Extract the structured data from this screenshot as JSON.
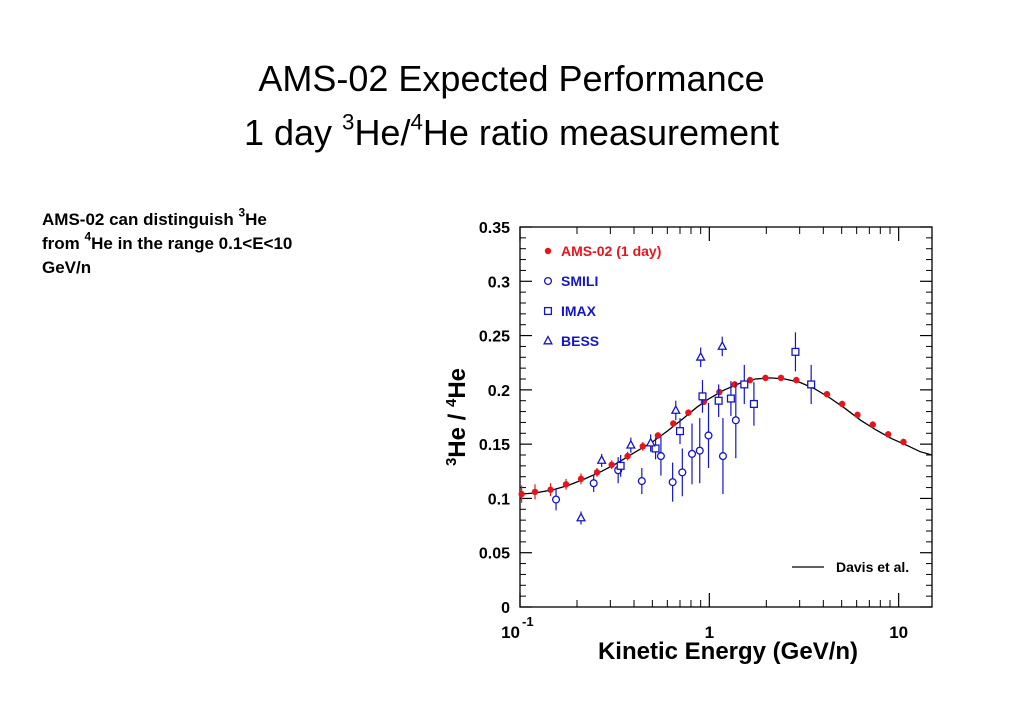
{
  "title": {
    "line1": "AMS-02 Expected Performance",
    "line2_pre": "1 day ",
    "line2_sup1": "3",
    "line2_mid": "He/",
    "line2_sup2": "4",
    "line2_post": "He ratio measurement"
  },
  "note": {
    "pre": "AMS-02 can distinguish ",
    "sup1": "3",
    "mid1": "He",
    "mid2": "from ",
    "sup2": "4",
    "mid3": "He in the range 0.1<E<10",
    "post": "GeV/n"
  },
  "colors": {
    "ams": "#e8141b",
    "measurements": "#1515c8",
    "model": "#000000",
    "legend_text": "#1515c8"
  },
  "chart_data": {
    "type": "scatter",
    "xlabel": "Kinetic Energy (GeV/n)",
    "ylabel": {
      "sup1": "3",
      "mid": "He / ",
      "sup2": "4",
      "post": "He"
    },
    "xscale": "log",
    "xlim": [
      0.1,
      15
    ],
    "ylim": [
      0,
      0.35
    ],
    "yticks": [
      "0",
      "0.05",
      "0.1",
      "0.15",
      "0.2",
      "0.25",
      "0.3",
      "0.35"
    ],
    "xtick_labels": [
      {
        "value": 0.1,
        "base": "10",
        "exp": "-1"
      },
      {
        "value": 1,
        "base": "1",
        "exp": ""
      },
      {
        "value": 10,
        "base": "10",
        "exp": ""
      }
    ],
    "legend_position": "top-left",
    "model_legend_position": "bottom-right",
    "series": [
      {
        "name": "AMS-02 (1 day)",
        "marker": "dot",
        "color": "#e8141b",
        "points": [
          [
            0.102,
            0.104
          ],
          [
            0.12,
            0.106
          ],
          [
            0.145,
            0.108
          ],
          [
            0.175,
            0.113
          ],
          [
            0.21,
            0.118
          ],
          [
            0.255,
            0.124
          ],
          [
            0.305,
            0.131
          ],
          [
            0.37,
            0.139
          ],
          [
            0.445,
            0.148
          ],
          [
            0.535,
            0.158
          ],
          [
            0.645,
            0.169
          ],
          [
            0.775,
            0.179
          ],
          [
            0.935,
            0.189
          ],
          [
            1.13,
            0.198
          ],
          [
            1.36,
            0.205
          ],
          [
            1.64,
            0.209
          ],
          [
            1.98,
            0.211
          ],
          [
            2.39,
            0.211
          ],
          [
            2.88,
            0.209
          ],
          [
            3.47,
            0.204
          ],
          [
            4.18,
            0.196
          ],
          [
            5.03,
            0.187
          ],
          [
            6.06,
            0.177
          ],
          [
            7.3,
            0.168
          ],
          [
            8.8,
            0.159
          ],
          [
            10.6,
            0.152
          ]
        ],
        "errors": [
          0.008,
          0.007,
          0.006,
          0.005,
          0.005,
          0.004,
          0.004,
          0.004,
          0.004,
          0.003,
          0.003,
          0.003,
          0.003,
          0.003,
          0.003,
          0.003,
          0.003,
          0.003,
          0.003,
          0.003,
          0.003,
          0.003,
          0.003,
          0.003,
          0.003,
          0.003
        ]
      },
      {
        "name": "SMILI",
        "marker": "circle",
        "color": "#1515c8",
        "points": [
          [
            0.155,
            0.099
          ],
          [
            0.245,
            0.114
          ],
          [
            0.33,
            0.126
          ],
          [
            0.44,
            0.116
          ],
          [
            0.555,
            0.139
          ],
          [
            0.64,
            0.115
          ],
          [
            0.72,
            0.124
          ],
          [
            0.81,
            0.141
          ],
          [
            0.89,
            0.144
          ],
          [
            0.99,
            0.158
          ],
          [
            1.18,
            0.139
          ],
          [
            1.38,
            0.172
          ]
        ],
        "errors": [
          0.01,
          0.008,
          0.012,
          0.012,
          0.018,
          0.018,
          0.022,
          0.028,
          0.03,
          0.03,
          0.035,
          0.035
        ]
      },
      {
        "name": "IMAX",
        "marker": "square",
        "color": "#1515c8",
        "points": [
          [
            0.34,
            0.13
          ],
          [
            0.52,
            0.146
          ],
          [
            0.7,
            0.162
          ],
          [
            0.92,
            0.194
          ],
          [
            1.12,
            0.19
          ],
          [
            1.3,
            0.192
          ],
          [
            1.53,
            0.205
          ],
          [
            1.72,
            0.187
          ],
          [
            2.85,
            0.235
          ],
          [
            3.45,
            0.205
          ]
        ],
        "errors": [
          0.01,
          0.01,
          0.012,
          0.015,
          0.015,
          0.016,
          0.018,
          0.02,
          0.018,
          0.018
        ]
      },
      {
        "name": "BESS",
        "marker": "triangle",
        "color": "#1515c8",
        "points": [
          [
            0.21,
            0.082
          ],
          [
            0.27,
            0.135
          ],
          [
            0.385,
            0.149
          ],
          [
            0.49,
            0.151
          ],
          [
            0.665,
            0.181
          ],
          [
            0.9,
            0.23
          ],
          [
            1.17,
            0.24
          ]
        ],
        "errors": [
          0.006,
          0.006,
          0.007,
          0.008,
          0.009,
          0.009,
          0.009
        ]
      }
    ],
    "model": {
      "name": "Davis et al.",
      "points": [
        [
          0.1,
          0.104
        ],
        [
          0.12,
          0.105
        ],
        [
          0.15,
          0.108
        ],
        [
          0.18,
          0.112
        ],
        [
          0.22,
          0.118
        ],
        [
          0.27,
          0.125
        ],
        [
          0.33,
          0.133
        ],
        [
          0.4,
          0.142
        ],
        [
          0.5,
          0.152
        ],
        [
          0.6,
          0.162
        ],
        [
          0.72,
          0.173
        ],
        [
          0.86,
          0.184
        ],
        [
          1.0,
          0.192
        ],
        [
          1.2,
          0.2
        ],
        [
          1.45,
          0.206
        ],
        [
          1.75,
          0.21
        ],
        [
          2.1,
          0.211
        ],
        [
          2.5,
          0.21
        ],
        [
          3.0,
          0.207
        ],
        [
          3.6,
          0.201
        ],
        [
          4.3,
          0.193
        ],
        [
          5.2,
          0.183
        ],
        [
          6.3,
          0.172
        ],
        [
          7.6,
          0.163
        ],
        [
          9.2,
          0.155
        ],
        [
          11.0,
          0.149
        ],
        [
          13.0,
          0.143
        ],
        [
          15.0,
          0.14
        ]
      ]
    }
  }
}
